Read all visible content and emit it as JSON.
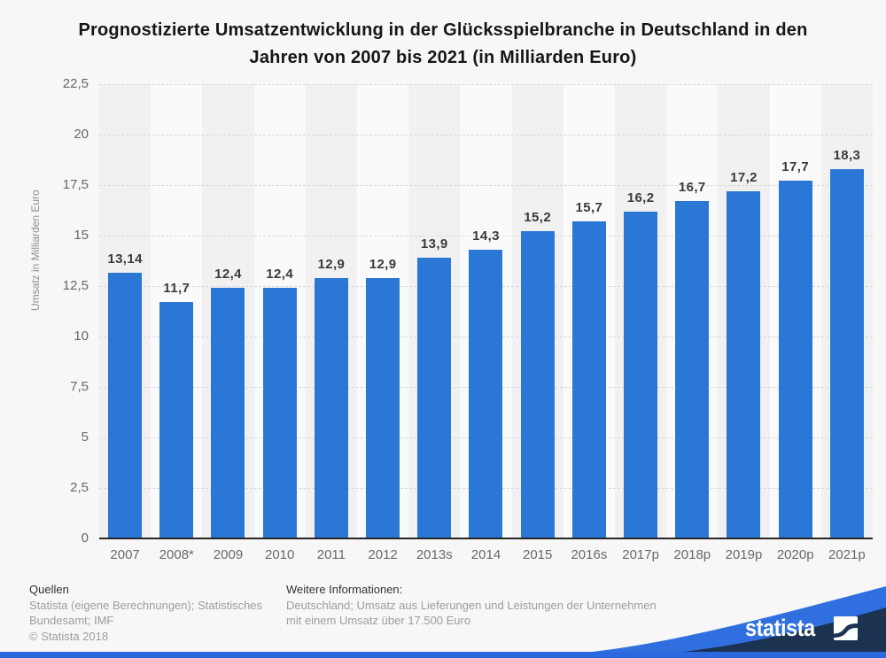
{
  "chart_data": {
    "type": "bar",
    "title": "Prognostizierte Umsatzentwicklung in der Glücksspielbranche in Deutschland in den Jahren von 2007 bis 2021 (in Milliarden Euro)",
    "title_line1": "Prognostizierte Umsatzentwicklung in der Glücksspielbranche in Deutschland in den",
    "title_line2": "Jahren von 2007 bis 2021 (in Milliarden Euro)",
    "categories": [
      "2007",
      "2008*",
      "2009",
      "2010",
      "2011",
      "2012",
      "2013s",
      "2014",
      "2015",
      "2016s",
      "2017p",
      "2018p",
      "2019p",
      "2020p",
      "2021p"
    ],
    "values": [
      13.14,
      11.7,
      12.4,
      12.4,
      12.9,
      12.9,
      13.9,
      14.3,
      15.2,
      15.7,
      16.2,
      16.7,
      17.2,
      17.7,
      18.3
    ],
    "value_labels": [
      "13,14",
      "11,7",
      "12,4",
      "12,4",
      "12,9",
      "12,9",
      "13,9",
      "14,3",
      "15,2",
      "15,7",
      "16,2",
      "16,7",
      "17,2",
      "17,7",
      "18,3"
    ],
    "xlabel": "",
    "ylabel": "Umsatz in Milliarden Euro",
    "ylim": [
      0,
      22.5
    ],
    "yticks": [
      0,
      2.5,
      5,
      7.5,
      10,
      12.5,
      15,
      17.5,
      20,
      22.5
    ],
    "ytick_labels": [
      "0",
      "2,5",
      "5",
      "7,5",
      "10",
      "12,5",
      "15",
      "17,5",
      "20",
      "22,5"
    ],
    "grid": true,
    "legend_position": "none",
    "bar_color": "#2b77d5"
  },
  "footer": {
    "sources_title": "Quellen",
    "sources_line1": "Statista (eigene Berechnungen); Statistisches",
    "sources_line2": "Bundesamt; IMF",
    "copyright": "© Statista 2018",
    "info_title": "Weitere Informationen:",
    "info_line1": "Deutschland; Umsatz aus Lieferungen und Leistungen der Unternehmen",
    "info_line2": "mit einem Umsatz über 17.500 Euro"
  },
  "branding": {
    "wordmark": "statista"
  },
  "colors": {
    "bar": "#2b77d5",
    "bottom_strip": "#2c68e0",
    "wave_light": "#2f6fdf",
    "wave_navy": "#1b3351",
    "page_background": "#f7f7f7"
  }
}
